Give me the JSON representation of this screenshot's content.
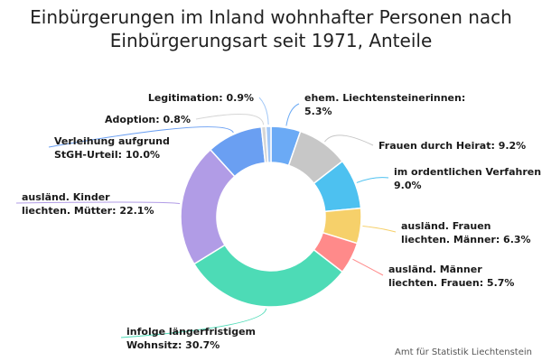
{
  "chart_data": {
    "type": "pie",
    "style": "donut",
    "title": "Einbürgerungen im Inland wohnhafter Personen nach Einbürgerungsart seit 1971, Anteile",
    "credit": "Amt für Statistik Liechtenstein",
    "unit": "%",
    "slices": [
      {
        "name": "ehem. Liechtensteinerinnen",
        "value": 5.3,
        "label": "ehem. Liechtensteinerinnen: 5.3%",
        "color": "#6baaf5"
      },
      {
        "name": "Frauen durch Heirat",
        "value": 9.2,
        "label": "Frauen durch Heirat: 9.2%",
        "color": "#c7c7c7"
      },
      {
        "name": "im ordentlichen Verfahren",
        "value": 9.0,
        "label": "im ordentlichen Verfahren: 9.0%",
        "color": "#4dc1f0"
      },
      {
        "name": "ausländ. Frauen liechten. Männer",
        "value": 6.3,
        "label": "ausländ. Frauen liechten. Männer: 6.3%",
        "color": "#f6d06a"
      },
      {
        "name": "ausländ. Männer liechten. Frauen",
        "value": 5.7,
        "label": "ausländ. Männer liechten. Frauen: 5.7%",
        "color": "#ff8a8a"
      },
      {
        "name": "infolge längerfristigem Wohnsitz",
        "value": 30.7,
        "label": "infolge längerfristigem Wohnsitz: 30.7%",
        "color": "#4ddbb6"
      },
      {
        "name": "ausländ. Kinder liechten. Mütter",
        "value": 22.1,
        "label": "ausländ. Kinder liechten. Mütter: 22.1%",
        "color": "#b19ce6"
      },
      {
        "name": "Verleihung aufgrund StGH-Urteil",
        "value": 10.0,
        "label": "Verleihung aufgrund StGH-Urteil: 10.0%",
        "color": "#6a9ff2"
      },
      {
        "name": "Adoption",
        "value": 0.8,
        "label": "Adoption: 0.8%",
        "color": "#d6d6d6"
      },
      {
        "name": "Legitimation",
        "value": 0.9,
        "label": "Legitimation: 0.9%",
        "color": "#a3c8f7"
      }
    ]
  }
}
